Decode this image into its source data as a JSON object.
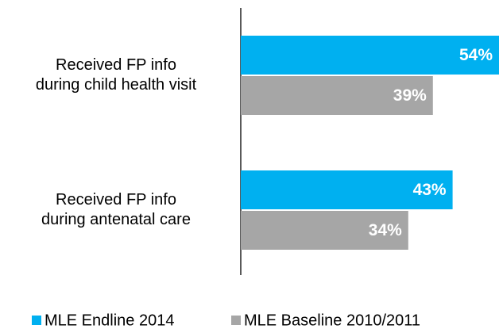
{
  "chart_data": {
    "type": "bar",
    "orientation": "horizontal",
    "categories": [
      "Received FP info\nduring child health visit",
      "Received FP info\nduring antenatal care"
    ],
    "series": [
      {
        "name": "MLE Endline 2014",
        "color": "#00b0f0",
        "values": [
          54,
          43
        ],
        "value_labels": [
          "54%",
          "43%"
        ]
      },
      {
        "name": "MLE Baseline 2010/2011",
        "color": "#a6a6a6",
        "values": [
          39,
          34
        ],
        "value_labels": [
          "39%",
          "34%"
        ]
      }
    ],
    "legend": "bottom"
  }
}
